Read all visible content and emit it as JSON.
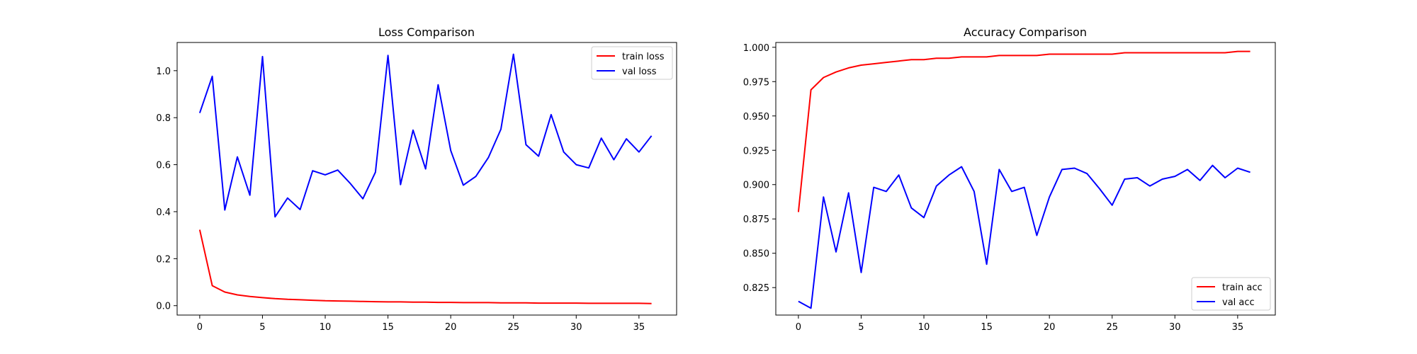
{
  "chart_data": [
    {
      "type": "line",
      "title": "Loss Comparison",
      "xlabel": "",
      "ylabel": "",
      "xlim": [
        -1.8,
        38.0
      ],
      "ylim": [
        -0.04,
        1.12
      ],
      "xticks": [
        0,
        5,
        10,
        15,
        20,
        25,
        30,
        35
      ],
      "yticks": [
        0.0,
        0.2,
        0.4,
        0.6,
        0.8,
        1.0
      ],
      "ytick_labels": [
        "0.0",
        "0.2",
        "0.4",
        "0.6",
        "0.8",
        "1.0"
      ],
      "grid": false,
      "legend_position": "upper right",
      "x": [
        0,
        1,
        2,
        3,
        4,
        5,
        6,
        7,
        8,
        9,
        10,
        11,
        12,
        13,
        14,
        15,
        16,
        17,
        18,
        19,
        20,
        21,
        22,
        23,
        24,
        25,
        26,
        27,
        28,
        29,
        30,
        31,
        32,
        33,
        34,
        35,
        36
      ],
      "series": [
        {
          "name": "train loss",
          "color": "#ff0000",
          "values": [
            0.323,
            0.085,
            0.058,
            0.046,
            0.039,
            0.034,
            0.03,
            0.027,
            0.025,
            0.023,
            0.021,
            0.02,
            0.019,
            0.018,
            0.017,
            0.016,
            0.016,
            0.015,
            0.015,
            0.014,
            0.014,
            0.013,
            0.013,
            0.013,
            0.012,
            0.012,
            0.012,
            0.011,
            0.011,
            0.011,
            0.011,
            0.01,
            0.01,
            0.01,
            0.01,
            0.01,
            0.009
          ]
        },
        {
          "name": "val loss",
          "color": "#0000ff",
          "values": [
            0.82,
            0.976,
            0.407,
            0.633,
            0.47,
            1.06,
            0.378,
            0.458,
            0.409,
            0.574,
            0.557,
            0.577,
            0.52,
            0.455,
            0.568,
            1.065,
            0.515,
            0.747,
            0.582,
            0.94,
            0.66,
            0.513,
            0.55,
            0.63,
            0.751,
            1.07,
            0.685,
            0.636,
            0.813,
            0.654,
            0.6,
            0.586,
            0.713,
            0.621,
            0.71,
            0.654,
            0.723
          ]
        }
      ]
    },
    {
      "type": "line",
      "title": "Accuracy Comparison",
      "xlabel": "",
      "ylabel": "",
      "xlim": [
        -1.8,
        38.0
      ],
      "ylim": [
        0.805,
        1.0035
      ],
      "xticks": [
        0,
        5,
        10,
        15,
        20,
        25,
        30,
        35
      ],
      "yticks": [
        0.825,
        0.85,
        0.875,
        0.9,
        0.925,
        0.95,
        0.975,
        1.0
      ],
      "ytick_labels": [
        "0.825",
        "0.850",
        "0.875",
        "0.900",
        "0.925",
        "0.950",
        "0.975",
        "1.000"
      ],
      "grid": false,
      "legend_position": "lower right",
      "x": [
        0,
        1,
        2,
        3,
        4,
        5,
        6,
        7,
        8,
        9,
        10,
        11,
        12,
        13,
        14,
        15,
        16,
        17,
        18,
        19,
        20,
        21,
        22,
        23,
        24,
        25,
        26,
        27,
        28,
        29,
        30,
        31,
        32,
        33,
        34,
        35,
        36
      ],
      "series": [
        {
          "name": "train acc",
          "color": "#ff0000",
          "values": [
            0.88,
            0.969,
            0.978,
            0.982,
            0.985,
            0.987,
            0.988,
            0.989,
            0.99,
            0.991,
            0.991,
            0.992,
            0.992,
            0.993,
            0.993,
            0.993,
            0.994,
            0.994,
            0.994,
            0.994,
            0.995,
            0.995,
            0.995,
            0.995,
            0.995,
            0.995,
            0.996,
            0.996,
            0.996,
            0.996,
            0.996,
            0.996,
            0.996,
            0.996,
            0.996,
            0.997,
            0.997
          ]
        },
        {
          "name": "val acc",
          "color": "#0000ff",
          "values": [
            0.815,
            0.81,
            0.891,
            0.851,
            0.894,
            0.836,
            0.898,
            0.895,
            0.907,
            0.883,
            0.876,
            0.899,
            0.907,
            0.913,
            0.895,
            0.842,
            0.911,
            0.895,
            0.898,
            0.863,
            0.891,
            0.911,
            0.912,
            0.908,
            0.897,
            0.885,
            0.904,
            0.905,
            0.899,
            0.904,
            0.906,
            0.911,
            0.903,
            0.914,
            0.905,
            0.912,
            0.909
          ]
        }
      ]
    }
  ]
}
